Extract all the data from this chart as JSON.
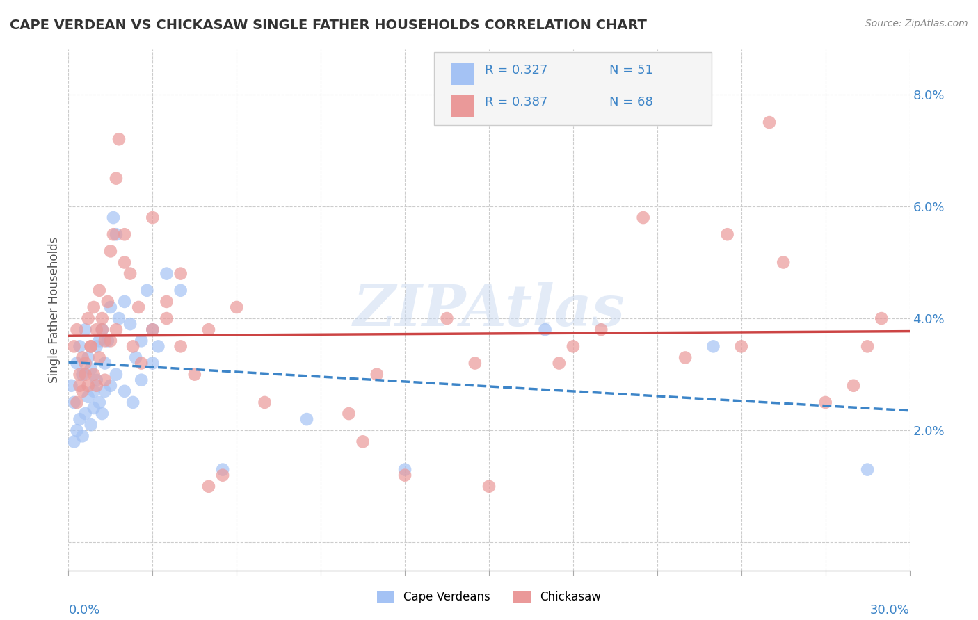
{
  "title": "CAPE VERDEAN VS CHICKASAW SINGLE FATHER HOUSEHOLDS CORRELATION CHART",
  "source": "Source: ZipAtlas.com",
  "ylabel": "Single Father Households",
  "xlim": [
    0.0,
    30.0
  ],
  "ylim": [
    -0.5,
    8.8
  ],
  "yticks": [
    0.0,
    2.0,
    4.0,
    6.0,
    8.0
  ],
  "ytick_labels": [
    "",
    "2.0%",
    "4.0%",
    "6.0%",
    "8.0%"
  ],
  "watermark": "ZIPAtlas",
  "legend_r1": "R = 0.327",
  "legend_n1": "N = 51",
  "legend_r2": "R = 0.387",
  "legend_n2": "N = 68",
  "blue_color": "#a4c2f4",
  "pink_color": "#ea9999",
  "trend_blue_color": "#3d85c8",
  "trend_pink_color": "#cc4444",
  "blue_scatter": [
    [
      0.1,
      2.8
    ],
    [
      0.2,
      2.5
    ],
    [
      0.3,
      3.2
    ],
    [
      0.4,
      3.5
    ],
    [
      0.5,
      3.0
    ],
    [
      0.6,
      3.8
    ],
    [
      0.7,
      3.3
    ],
    [
      0.8,
      3.1
    ],
    [
      0.9,
      2.7
    ],
    [
      1.0,
      3.5
    ],
    [
      1.1,
      3.6
    ],
    [
      1.2,
      3.8
    ],
    [
      1.3,
      3.2
    ],
    [
      1.4,
      3.6
    ],
    [
      1.5,
      4.2
    ],
    [
      1.6,
      5.8
    ],
    [
      1.7,
      5.5
    ],
    [
      1.8,
      4.0
    ],
    [
      2.0,
      4.3
    ],
    [
      2.2,
      3.9
    ],
    [
      2.4,
      3.3
    ],
    [
      2.6,
      3.6
    ],
    [
      2.8,
      4.5
    ],
    [
      3.0,
      3.8
    ],
    [
      3.2,
      3.5
    ],
    [
      0.2,
      1.8
    ],
    [
      0.3,
      2.0
    ],
    [
      0.4,
      2.2
    ],
    [
      0.5,
      1.9
    ],
    [
      0.6,
      2.3
    ],
    [
      0.7,
      2.6
    ],
    [
      0.8,
      2.1
    ],
    [
      0.9,
      2.4
    ],
    [
      1.0,
      2.9
    ],
    [
      1.1,
      2.5
    ],
    [
      1.2,
      2.3
    ],
    [
      1.3,
      2.7
    ],
    [
      1.5,
      2.8
    ],
    [
      1.7,
      3.0
    ],
    [
      2.0,
      2.7
    ],
    [
      2.3,
      2.5
    ],
    [
      2.6,
      2.9
    ],
    [
      3.0,
      3.2
    ],
    [
      3.5,
      4.8
    ],
    [
      4.0,
      4.5
    ],
    [
      5.5,
      1.3
    ],
    [
      8.5,
      2.2
    ],
    [
      12.0,
      1.3
    ],
    [
      17.0,
      3.8
    ],
    [
      23.0,
      3.5
    ],
    [
      28.5,
      1.3
    ]
  ],
  "pink_scatter": [
    [
      0.2,
      3.5
    ],
    [
      0.3,
      3.8
    ],
    [
      0.4,
      2.8
    ],
    [
      0.5,
      3.3
    ],
    [
      0.6,
      3.0
    ],
    [
      0.7,
      4.0
    ],
    [
      0.8,
      3.5
    ],
    [
      0.9,
      4.2
    ],
    [
      1.0,
      3.8
    ],
    [
      1.1,
      4.5
    ],
    [
      1.2,
      4.0
    ],
    [
      1.3,
      3.6
    ],
    [
      1.4,
      4.3
    ],
    [
      1.5,
      5.2
    ],
    [
      1.6,
      5.5
    ],
    [
      1.7,
      6.5
    ],
    [
      1.8,
      7.2
    ],
    [
      2.0,
      5.5
    ],
    [
      2.2,
      4.8
    ],
    [
      2.5,
      4.2
    ],
    [
      3.0,
      3.8
    ],
    [
      3.5,
      4.0
    ],
    [
      4.0,
      3.5
    ],
    [
      5.0,
      3.8
    ],
    [
      6.0,
      4.2
    ],
    [
      0.3,
      2.5
    ],
    [
      0.4,
      3.0
    ],
    [
      0.5,
      2.7
    ],
    [
      0.6,
      3.2
    ],
    [
      0.7,
      2.8
    ],
    [
      0.8,
      3.5
    ],
    [
      0.9,
      3.0
    ],
    [
      1.0,
      2.8
    ],
    [
      1.1,
      3.3
    ],
    [
      1.2,
      3.8
    ],
    [
      1.3,
      2.9
    ],
    [
      1.5,
      3.6
    ],
    [
      1.7,
      3.8
    ],
    [
      2.0,
      5.0
    ],
    [
      2.3,
      3.5
    ],
    [
      2.6,
      3.2
    ],
    [
      3.0,
      5.8
    ],
    [
      3.5,
      4.3
    ],
    [
      4.0,
      4.8
    ],
    [
      4.5,
      3.0
    ],
    [
      5.0,
      1.0
    ],
    [
      5.5,
      1.2
    ],
    [
      7.0,
      2.5
    ],
    [
      10.0,
      2.3
    ],
    [
      12.0,
      1.2
    ],
    [
      15.0,
      1.0
    ],
    [
      17.5,
      3.2
    ],
    [
      19.0,
      3.8
    ],
    [
      20.5,
      5.8
    ],
    [
      22.0,
      3.3
    ],
    [
      24.0,
      3.5
    ],
    [
      25.5,
      5.0
    ],
    [
      25.0,
      7.5
    ],
    [
      27.0,
      2.5
    ],
    [
      28.5,
      3.5
    ],
    [
      11.0,
      3.0
    ],
    [
      13.5,
      4.0
    ],
    [
      18.0,
      3.5
    ],
    [
      23.5,
      5.5
    ],
    [
      29.0,
      4.0
    ],
    [
      10.5,
      1.8
    ],
    [
      14.5,
      3.2
    ],
    [
      28.0,
      2.8
    ]
  ]
}
